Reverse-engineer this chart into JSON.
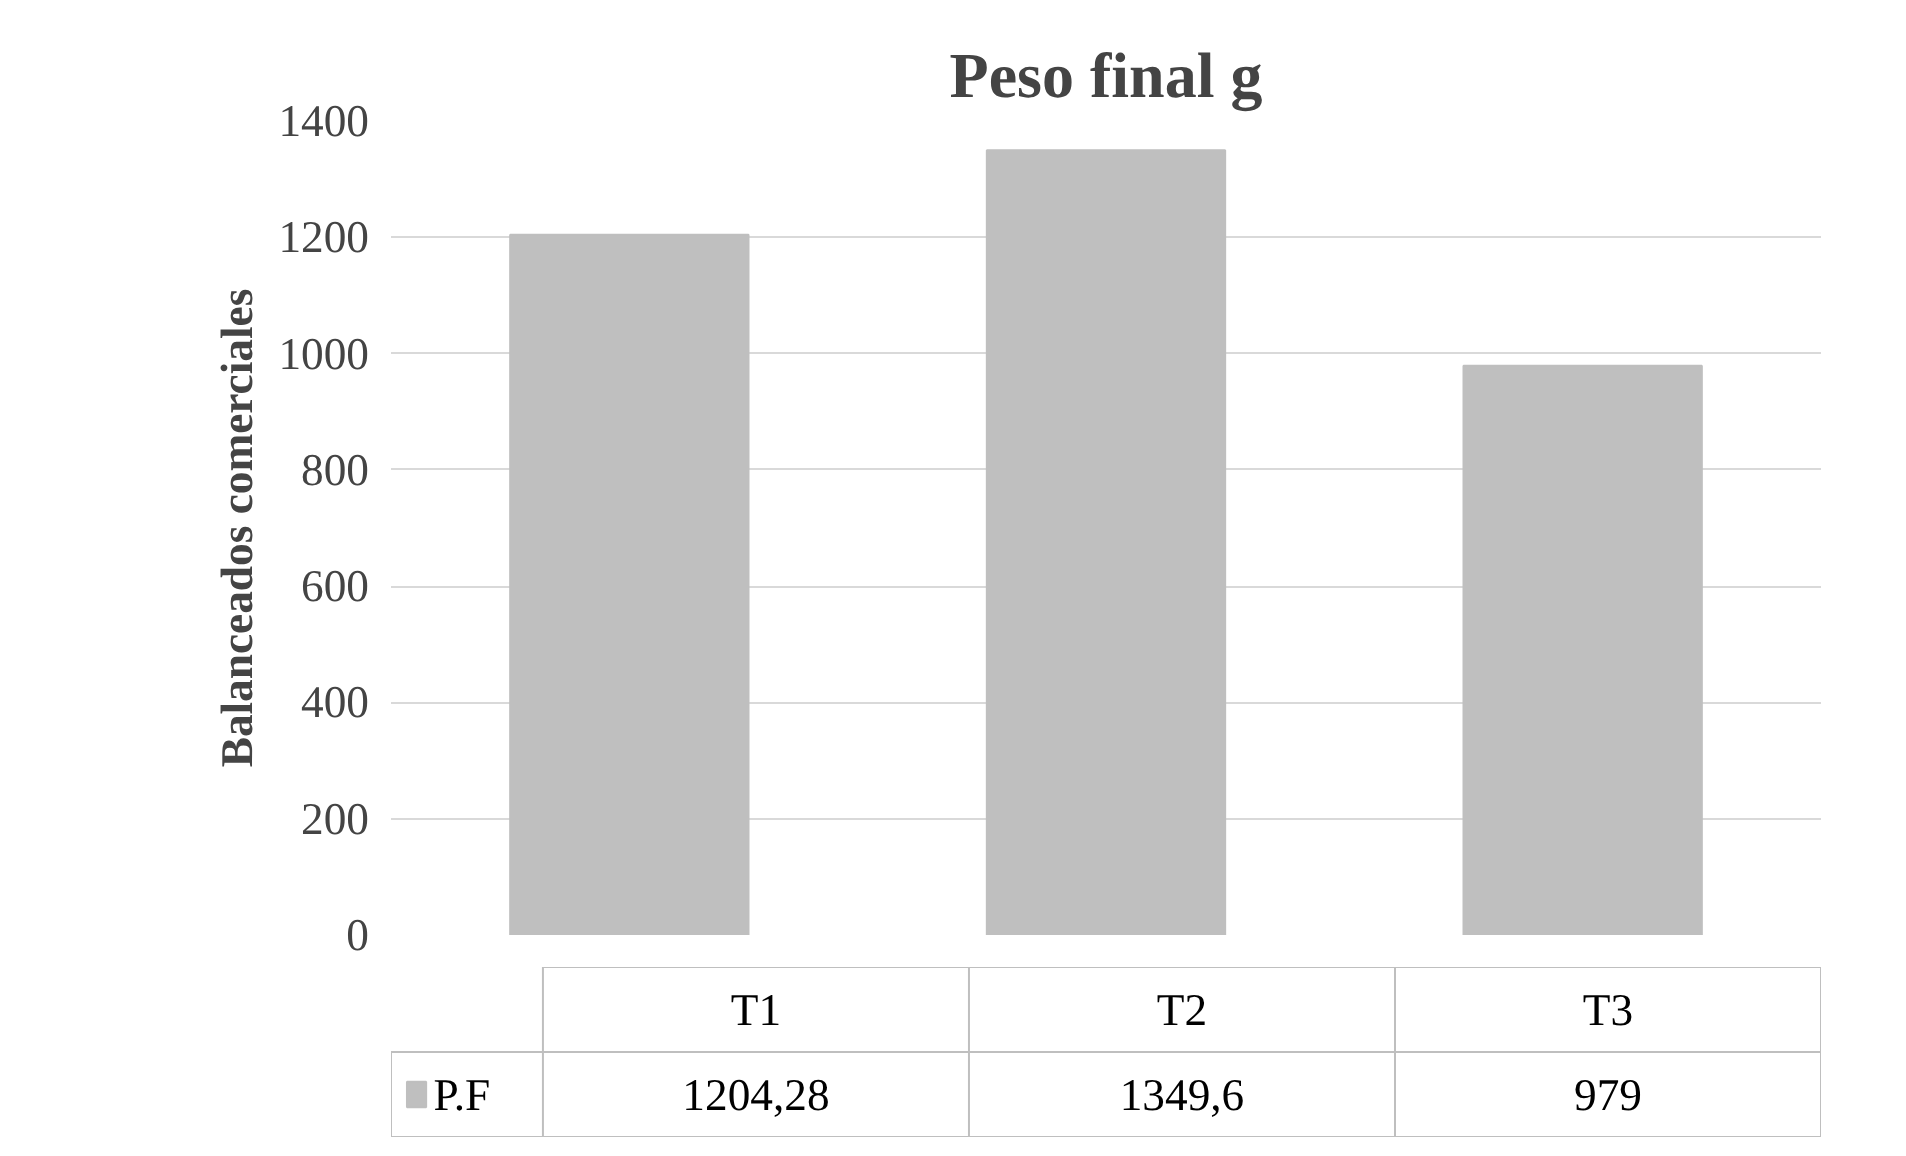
{
  "chart_data": {
    "type": "bar",
    "title": "Peso final g",
    "ylabel": "Balanceados comerciales",
    "categories": [
      "T1",
      "T2",
      "T3"
    ],
    "series": [
      {
        "name": "P.F",
        "color": "#bfbfbf",
        "values": [
          1204.28,
          1349.6,
          979
        ],
        "value_labels": [
          "1204,28",
          "1349,6",
          "979"
        ]
      }
    ],
    "ylim": [
      0,
      1400
    ],
    "yticks": [
      0,
      200,
      400,
      600,
      800,
      1000,
      1200,
      1400
    ],
    "grid": "y"
  }
}
